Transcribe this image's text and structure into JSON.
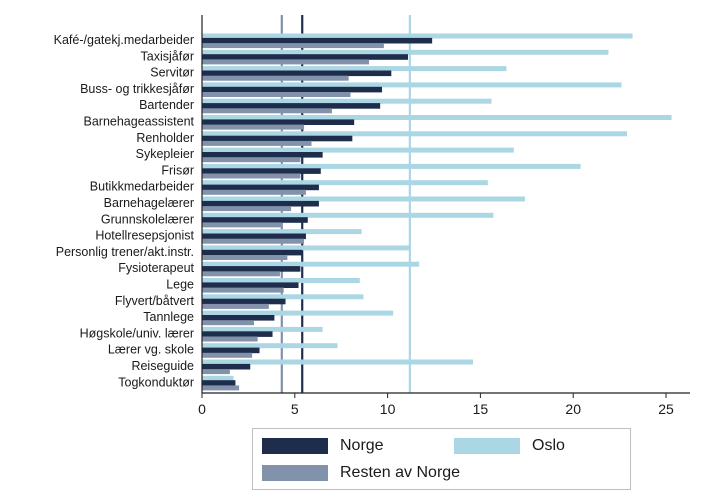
{
  "chart_data": {
    "type": "bar",
    "orientation": "horizontal",
    "categories": [
      "Kafé-/gatekj.medarbeider",
      "Taxisjåfør",
      "Servitør",
      "Buss- og trikkesjåfør",
      "Bartender",
      "Barnehageassistent",
      "Renholder",
      "Sykepleier",
      "Frisør",
      "Butikkmedarbeider",
      "Barnehagelærer",
      "Grunnskolelærer",
      "Hotellresepsjonist",
      "Personlig trener/akt.instr.",
      "Fysioterapeut",
      "Lege",
      "Flyvert/båtvert",
      "Tannlege",
      "Høgskole/univ. lærer",
      "Lærer vg. skole",
      "Reiseguide",
      "Togkonduktør"
    ],
    "series": [
      {
        "name": "Norge",
        "color": "#1f2d4d",
        "values": [
          12.4,
          11.1,
          10.2,
          9.7,
          9.6,
          8.2,
          8.1,
          6.5,
          6.4,
          6.3,
          6.3,
          5.7,
          5.6,
          5.4,
          5.3,
          5.2,
          4.5,
          3.9,
          3.8,
          3.1,
          2.6,
          1.8
        ]
      },
      {
        "name": "Oslo",
        "color": "#abd7e4",
        "values": [
          23.2,
          21.9,
          16.4,
          22.6,
          15.6,
          25.3,
          22.9,
          16.8,
          20.4,
          15.4,
          17.4,
          15.7,
          8.6,
          11.2,
          11.7,
          8.5,
          8.7,
          10.3,
          6.5,
          7.3,
          14.6,
          1.7
        ]
      },
      {
        "name": "Resten av Norge",
        "color": "#8392ab",
        "values": [
          9.8,
          9.0,
          7.9,
          8.0,
          7.0,
          5.5,
          5.9,
          5.3,
          5.3,
          5.6,
          4.8,
          4.3,
          5.5,
          4.6,
          4.2,
          4.4,
          3.6,
          2.8,
          3.0,
          2.7,
          1.5,
          2.0
        ]
      }
    ],
    "reference_lines": [
      {
        "series": "Norge",
        "x": 5.4,
        "color": "#1f2d4d"
      },
      {
        "series": "Oslo",
        "x": 11.2,
        "color": "#abd7e4"
      },
      {
        "series": "Resten av Norge",
        "x": 4.3,
        "color": "#8392ab"
      }
    ],
    "xlim": [
      0,
      26.5
    ],
    "xticks": [
      0,
      5,
      10,
      15,
      20,
      25
    ],
    "xtick_labels": [
      "0",
      "5",
      "10",
      "15",
      "20",
      "25"
    ],
    "grid": false,
    "legend": {
      "placement": "bottom",
      "entries": [
        {
          "label": "Norge",
          "color": "#1f2d4d"
        },
        {
          "label": "Oslo",
          "color": "#abd7e4"
        },
        {
          "label": "Resten av Norge",
          "color": "#8392ab"
        }
      ]
    }
  }
}
